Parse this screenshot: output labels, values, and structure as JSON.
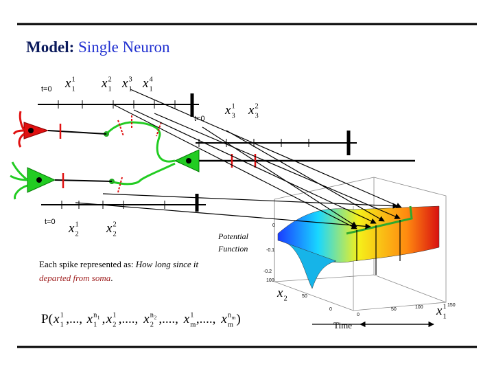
{
  "title": {
    "label": "Model:",
    "text": "Single Neuron"
  },
  "timelines": [
    {
      "start": "t=0",
      "spikes": [
        {
          "base": "x",
          "sub": "1",
          "sup": "1"
        },
        {
          "base": "x",
          "sub": "1",
          "sup": "2"
        },
        {
          "base": "x",
          "sub": "1",
          "sup": "3"
        },
        {
          "base": "x",
          "sub": "1",
          "sup": "4"
        }
      ]
    },
    {
      "start": "t=0",
      "spikes": [
        {
          "base": "x",
          "sub": "3",
          "sup": "1"
        },
        {
          "base": "x",
          "sub": "3",
          "sup": "2"
        }
      ]
    },
    {
      "start": "t=0",
      "spikes": [
        {
          "base": "x",
          "sub": "2",
          "sup": "1"
        },
        {
          "base": "x",
          "sub": "2",
          "sup": "2"
        }
      ]
    }
  ],
  "plot": {
    "label": [
      "Potential",
      "Function"
    ],
    "z_ticks": [
      "0",
      "-0.1",
      "-0.2"
    ],
    "y_ticks": [
      "100",
      "50",
      "0"
    ],
    "x_ticks": [
      "150",
      "100",
      "50",
      "0"
    ],
    "y_axis": {
      "base": "x",
      "sub": "2"
    },
    "x_axis": {
      "base": "x",
      "sub": "1",
      "sup": "1"
    },
    "time": "Time"
  },
  "caption": {
    "lead": "Each spike represented as:",
    "italic": "How long since it",
    "highlight": "departed from soma",
    "end": "."
  },
  "formula": [
    {
      "t": "P("
    },
    {
      "base": "x",
      "sub": "1",
      "sup": "1"
    },
    {
      "t": ",...,"
    },
    {
      "base": "x",
      "sub": "1",
      "sup": "n",
      "supsub": "1"
    },
    {
      "t": ","
    },
    {
      "base": "x",
      "sub": "2",
      "sup": "1"
    },
    {
      "t": ",....,"
    },
    {
      "base": "x",
      "sub": "2",
      "sup": "n",
      "supsub": "2"
    },
    {
      "t": ",....,"
    },
    {
      "base": "x",
      "sub": "m",
      "sup": "1"
    },
    {
      "t": ",....,"
    },
    {
      "base": "x",
      "sub": "m",
      "sup": "n",
      "supsub": "m"
    },
    {
      "t": ")"
    }
  ]
}
